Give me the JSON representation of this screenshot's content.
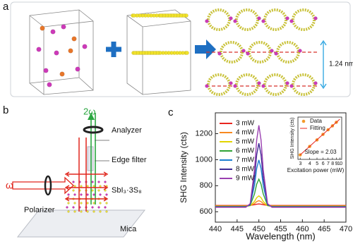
{
  "panels": {
    "a": {
      "label": "a",
      "dimension": "1.24 nm"
    },
    "b": {
      "label": "b",
      "beam_out": "2ω",
      "analyzer": "Analyzer",
      "edge_filter": "Edge filter",
      "beam_in": "ω",
      "polarizer": "Polarizer",
      "sample": "SbI₃·3S₈",
      "substrate": "Mica"
    },
    "c": {
      "label": "c"
    }
  },
  "chart_data": [
    {
      "type": "line",
      "xlabel": "Wavelength (nm)",
      "ylabel": "SHG Intensity (cts)",
      "x": [
        440,
        445,
        447,
        448,
        449,
        449.5,
        450,
        450.5,
        451,
        452,
        453,
        455,
        460,
        465,
        470
      ],
      "xlim": [
        440,
        470
      ],
      "xticks": [
        440,
        445,
        450,
        455,
        460,
        465,
        470
      ],
      "ylim": [
        520,
        1360
      ],
      "yticks": [
        600,
        800,
        1000,
        1200
      ],
      "legend": "upper left",
      "series": [
        {
          "name": "3 mW",
          "color": "#e8251f",
          "values": [
            648,
            648,
            648,
            649,
            654,
            658,
            660,
            658,
            654,
            649,
            648,
            648,
            648,
            648,
            648
          ]
        },
        {
          "name": "4 mW",
          "color": "#f7891f",
          "values": [
            645,
            645,
            645,
            647,
            663,
            678,
            685,
            678,
            663,
            647,
            645,
            645,
            645,
            645,
            645
          ]
        },
        {
          "name": "5 mW",
          "color": "#e3d400",
          "values": [
            642,
            642,
            642,
            646,
            679,
            708,
            722,
            708,
            679,
            646,
            642,
            642,
            642,
            642,
            642
          ]
        },
        {
          "name": "6 mW",
          "color": "#2fa336",
          "values": [
            640,
            640,
            640,
            649,
            737,
            812,
            850,
            812,
            737,
            649,
            640,
            640,
            640,
            640,
            640
          ]
        },
        {
          "name": "7 mW",
          "color": "#1b7fd1",
          "values": [
            638,
            638,
            638,
            654,
            804,
            933,
            998,
            933,
            804,
            654,
            638,
            638,
            638,
            638,
            638
          ]
        },
        {
          "name": "8 mW",
          "color": "#3c2a93",
          "values": [
            636,
            636,
            636,
            658,
            861,
            1038,
            1126,
            1038,
            861,
            658,
            636,
            636,
            636,
            636,
            636
          ]
        },
        {
          "name": "9 mW",
          "color": "#9a3fb0",
          "values": [
            634,
            634,
            634,
            662,
            924,
            1151,
            1264,
            1151,
            924,
            662,
            634,
            634,
            634,
            634,
            634
          ]
        }
      ]
    },
    {
      "type": "scatter",
      "xlabel": "Excitation power (mW)",
      "ylabel": "SHG Intensity (cts)",
      "xscale": "log",
      "yscale": "log",
      "xlim": [
        2.8,
        10.6
      ],
      "xticks": [
        3,
        4,
        5,
        6,
        7,
        8,
        9,
        10
      ],
      "ylim": [
        50,
        900
      ],
      "legend": "upper left",
      "annotation": "Slope = 2.03",
      "series": [
        {
          "name": "Data",
          "color": "#f39a2b",
          "x": [
            3,
            4,
            5,
            6,
            7,
            8,
            9
          ],
          "values": [
            68,
            121,
            189,
            276,
            378,
            494,
            630
          ]
        },
        {
          "name": "Fitting",
          "type": "line",
          "color": "#e8251f",
          "x": [
            3,
            10
          ],
          "values": [
            68,
            778
          ]
        }
      ]
    }
  ]
}
